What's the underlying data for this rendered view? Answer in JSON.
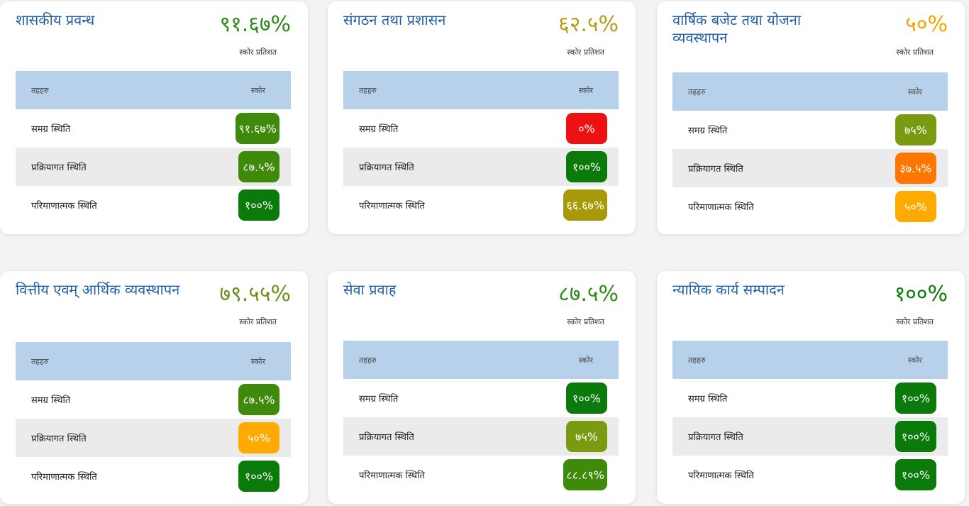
{
  "labels": {
    "score_caption": "स्कोर प्रतिशत",
    "col_criteria": "तहहरु",
    "col_score": "स्कोर"
  },
  "cards": [
    {
      "title": "शासकीय प्रवन्ध",
      "score": "९१.६७%",
      "score_color": "#2e8b1c",
      "rows": [
        {
          "label": "समग्र स्थिति",
          "value": "९१.६७%",
          "color": "#3f8a0b"
        },
        {
          "label": "प्रक्रियागत स्थिति",
          "value": "८७.५%",
          "color": "#3f8a0b"
        },
        {
          "label": "परिमाणात्मक स्थिति",
          "value": "१००%",
          "color": "#0a7a0a"
        }
      ]
    },
    {
      "title": "संगठन तथा प्रशासन",
      "score": "६२.५%",
      "score_color": "#b89a1a",
      "rows": [
        {
          "label": "समग्र स्थिति",
          "value": "०%",
          "color": "#ee1111"
        },
        {
          "label": "प्रक्रियागत स्थिति",
          "value": "१००%",
          "color": "#0a7a0a"
        },
        {
          "label": "परिमाणात्मक स्थिति",
          "value": "६६.६७%",
          "color": "#a79a0a"
        }
      ]
    },
    {
      "title": "वार्षिक बजेट तथा योजना व्यवस्थापन",
      "score": "५०%",
      "score_color": "#f5a300",
      "rows": [
        {
          "label": "समग्र स्थिति",
          "value": "७५%",
          "color": "#7a9a12"
        },
        {
          "label": "प्रक्रियागत स्थिति",
          "value": "३७.५%",
          "color": "#ff7700"
        },
        {
          "label": "परिमाणात्मक स्थिति",
          "value": "५०%",
          "color": "#ffaa00"
        }
      ]
    },
    {
      "title": "वित्तीय एवम् आर्थिक व्यवस्थापन",
      "score": "७९.५५%",
      "score_color": "#6f8f1f",
      "rows": [
        {
          "label": "समग्र स्थिति",
          "value": "८७.५%",
          "color": "#3f8a0b"
        },
        {
          "label": "प्रक्रियागत स्थिति",
          "value": "५०%",
          "color": "#ffaa00"
        },
        {
          "label": "परिमाणात्मक स्थिति",
          "value": "१००%",
          "color": "#0a7a0a"
        }
      ]
    },
    {
      "title": "सेवा प्रवाह",
      "score": "८७.५%",
      "score_color": "#2e8b1c",
      "rows": [
        {
          "label": "समग्र स्थिति",
          "value": "१००%",
          "color": "#0a7a0a"
        },
        {
          "label": "प्रक्रियागत स्थिति",
          "value": "७५%",
          "color": "#7a9a12"
        },
        {
          "label": "परिमाणात्मक स्थिति",
          "value": "८८.८९%",
          "color": "#3f8a0b"
        }
      ]
    },
    {
      "title": "न्यायिक कार्य सम्पादन",
      "score": "१००%",
      "score_color": "#0a7a0a",
      "rows": [
        {
          "label": "समग्र स्थिति",
          "value": "१००%",
          "color": "#0a7a0a"
        },
        {
          "label": "प्रक्रियागत स्थिति",
          "value": "१००%",
          "color": "#0a7a0a"
        },
        {
          "label": "परिमाणात्मक स्थिति",
          "value": "१००%",
          "color": "#0a7a0a"
        }
      ]
    }
  ]
}
